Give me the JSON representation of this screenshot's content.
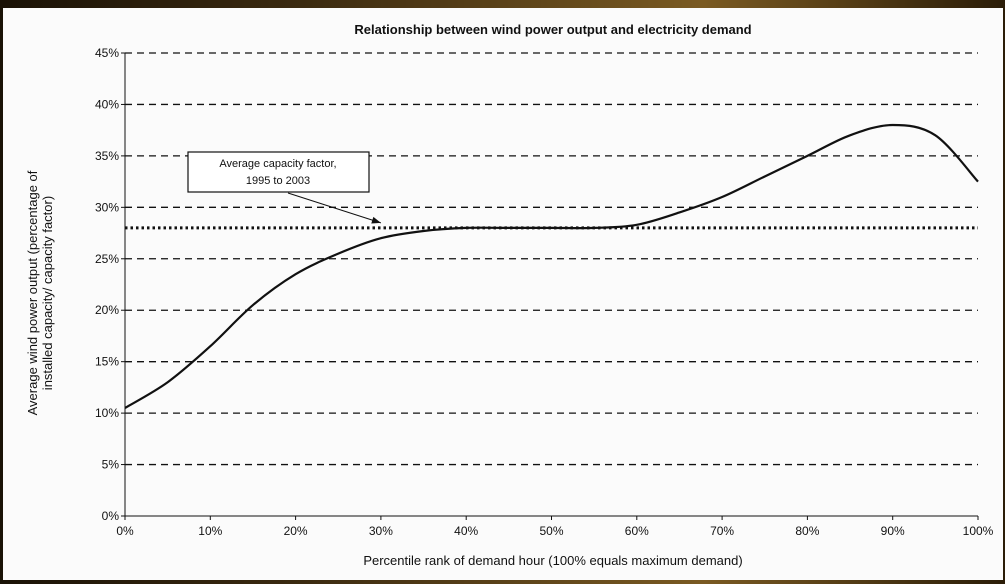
{
  "chart_data": {
    "type": "line",
    "title": "Relationship between wind power output and electricity demand",
    "xlabel": "Percentile rank of demand hour (100% equals maximum demand)",
    "ylabel": [
      "Average wind power output (percentage of",
      "installed capacity/ capacity factor)"
    ],
    "xlim": [
      0,
      100
    ],
    "ylim": [
      0,
      45
    ],
    "x_ticks": [
      "0%",
      "10%",
      "20%",
      "30%",
      "40%",
      "50%",
      "60%",
      "70%",
      "80%",
      "90%",
      "100%"
    ],
    "y_ticks": [
      "0%",
      "5%",
      "10%",
      "15%",
      "20%",
      "25%",
      "30%",
      "35%",
      "40%",
      "45%"
    ],
    "grid": "horizontal dashed",
    "series": [
      {
        "values_x": [
          0,
          5,
          10,
          15,
          20,
          25,
          30,
          35,
          40,
          45,
          50,
          55,
          60,
          65,
          70,
          75,
          80,
          85,
          90,
          95,
          100
        ],
        "values_y": [
          10.5,
          13.0,
          16.5,
          20.5,
          23.5,
          25.5,
          27.0,
          27.7,
          28.0,
          28.0,
          28.0,
          28.0,
          28.3,
          29.5,
          31.0,
          33.0,
          35.0,
          37.0,
          38.0,
          37.0,
          32.5
        ]
      },
      {
        "style": "dotted",
        "values_x": [
          0,
          100
        ],
        "values_y": [
          28.0,
          28.0
        ]
      }
    ],
    "annotation": {
      "lines": [
        "Average capacity factor,",
        "1995 to 2003"
      ],
      "arrow_target": {
        "x": 30,
        "y": 28
      }
    }
  }
}
